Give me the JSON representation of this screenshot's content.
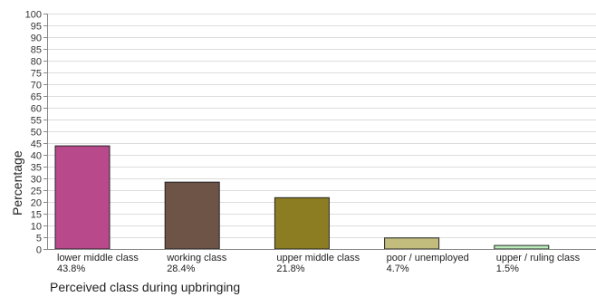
{
  "chart_data": {
    "type": "bar",
    "title": "",
    "xlabel": "Perceived class during upbringing",
    "ylabel": "Percentage",
    "ylim": [
      0,
      100
    ],
    "yticks": [
      0,
      5,
      10,
      15,
      20,
      25,
      30,
      35,
      40,
      45,
      50,
      55,
      60,
      65,
      70,
      75,
      80,
      85,
      90,
      95,
      100
    ],
    "grid": true,
    "categories": [
      "lower middle class",
      "working class",
      "upper middle class",
      "poor / unemployed",
      "upper / ruling class"
    ],
    "values": [
      43.8,
      28.4,
      21.8,
      4.7,
      1.5
    ],
    "value_labels": [
      "43.8%",
      "28.4%",
      "21.8%",
      "4.7%",
      "1.5%"
    ],
    "colors": [
      "#b84a8c",
      "#6e5446",
      "#8c7d22",
      "#c2bd7c",
      "#b8ecb8"
    ]
  }
}
